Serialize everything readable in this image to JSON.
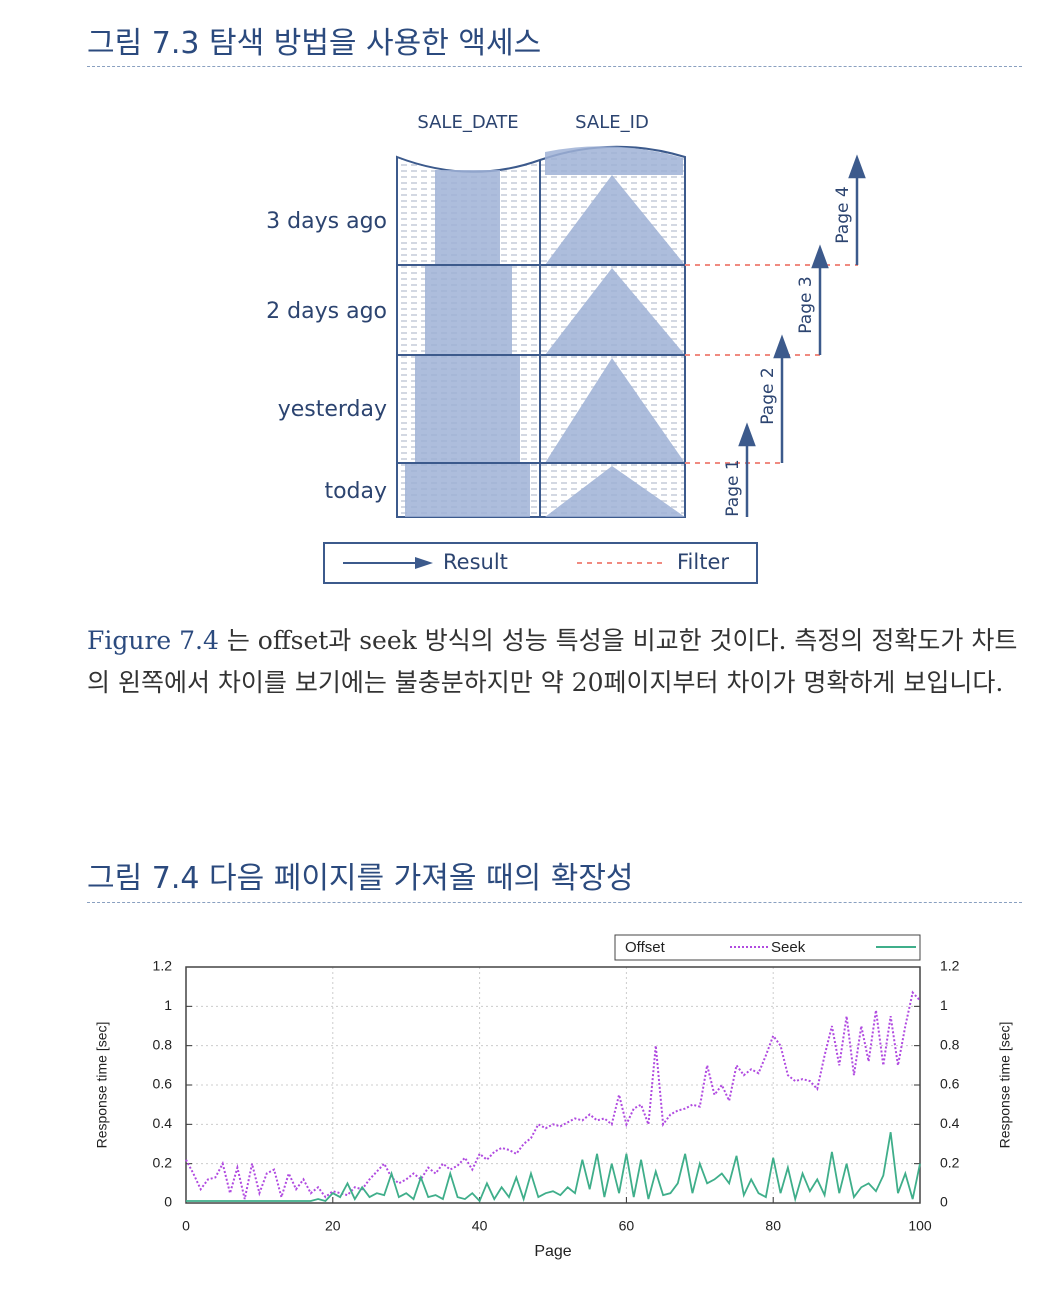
{
  "figure1": {
    "title": "그림 7.3 탐색 방법을 사용한 액세스",
    "columns": [
      "SALE_DATE",
      "SALE_ID"
    ],
    "rows": [
      "3 days ago",
      "2 days ago",
      "yesterday",
      "today"
    ],
    "pages": [
      "Page 1",
      "Page 2",
      "Page 3",
      "Page 4"
    ],
    "legend": [
      "Result",
      "Filter"
    ]
  },
  "paragraph": {
    "link": "Figure 7.4",
    "text": " 는 offset과 seek 방식의 성능 특성을 비교한 것이다. 측정의 정확도가 차트의 왼쪽에서 차이를 보기에는 불충분하지만 약 20페이지부터 차이가 명확하게 보입니다."
  },
  "figure2": {
    "title": "그림 7.4 다음 페이지를 가져올 때의 확장성"
  },
  "chart_data": {
    "type": "line",
    "xlabel": "Page",
    "ylabel": "Response time [sec]",
    "y2label": "Response time [sec]",
    "x": [
      0,
      1,
      2,
      3,
      4,
      5,
      6,
      7,
      8,
      9,
      10,
      11,
      12,
      13,
      14,
      15,
      16,
      17,
      18,
      19,
      20,
      21,
      22,
      23,
      24,
      25,
      26,
      27,
      28,
      29,
      30,
      31,
      32,
      33,
      34,
      35,
      36,
      37,
      38,
      39,
      40,
      41,
      42,
      43,
      44,
      45,
      46,
      47,
      48,
      49,
      50,
      51,
      52,
      53,
      54,
      55,
      56,
      57,
      58,
      59,
      60,
      61,
      62,
      63,
      64,
      65,
      66,
      67,
      68,
      69,
      70,
      71,
      72,
      73,
      74,
      75,
      76,
      77,
      78,
      79,
      80,
      81,
      82,
      83,
      84,
      85,
      86,
      87,
      88,
      89,
      90,
      91,
      92,
      93,
      94,
      95,
      96,
      97,
      98,
      99,
      100
    ],
    "series": [
      {
        "name": "Offset",
        "color": "#b04ae0",
        "style": "dotted",
        "values": [
          0.22,
          0.15,
          0.07,
          0.12,
          0.13,
          0.2,
          0.05,
          0.18,
          0.02,
          0.2,
          0.05,
          0.15,
          0.17,
          0.03,
          0.15,
          0.07,
          0.12,
          0.05,
          0.08,
          0.03,
          0.06,
          0.05,
          0.04,
          0.08,
          0.07,
          0.12,
          0.16,
          0.2,
          0.13,
          0.1,
          0.12,
          0.15,
          0.12,
          0.18,
          0.15,
          0.2,
          0.17,
          0.19,
          0.23,
          0.17,
          0.25,
          0.22,
          0.26,
          0.28,
          0.27,
          0.25,
          0.3,
          0.33,
          0.4,
          0.38,
          0.4,
          0.39,
          0.41,
          0.43,
          0.42,
          0.45,
          0.42,
          0.43,
          0.4,
          0.55,
          0.4,
          0.48,
          0.5,
          0.4,
          0.8,
          0.4,
          0.45,
          0.47,
          0.48,
          0.5,
          0.49,
          0.7,
          0.55,
          0.6,
          0.52,
          0.7,
          0.65,
          0.68,
          0.66,
          0.75,
          0.85,
          0.8,
          0.65,
          0.62,
          0.63,
          0.62,
          0.58,
          0.75,
          0.9,
          0.7,
          0.95,
          0.65,
          0.9,
          0.72,
          0.98,
          0.7,
          0.95,
          0.7,
          0.9,
          1.07,
          1.03
        ]
      },
      {
        "name": "Seek",
        "color": "#3fae8a",
        "style": "solid",
        "values": [
          0.01,
          0.01,
          0.01,
          0.01,
          0.01,
          0.01,
          0.01,
          0.01,
          0.01,
          0.01,
          0.01,
          0.01,
          0.01,
          0.01,
          0.01,
          0.01,
          0.01,
          0.01,
          0.02,
          0.01,
          0.05,
          0.03,
          0.1,
          0.02,
          0.08,
          0.03,
          0.05,
          0.04,
          0.15,
          0.03,
          0.05,
          0.02,
          0.13,
          0.03,
          0.04,
          0.02,
          0.15,
          0.03,
          0.02,
          0.05,
          0.01,
          0.1,
          0.02,
          0.08,
          0.03,
          0.13,
          0.02,
          0.15,
          0.03,
          0.05,
          0.06,
          0.04,
          0.08,
          0.05,
          0.22,
          0.07,
          0.25,
          0.03,
          0.2,
          0.05,
          0.25,
          0.03,
          0.22,
          0.02,
          0.16,
          0.04,
          0.05,
          0.1,
          0.25,
          0.05,
          0.2,
          0.1,
          0.12,
          0.15,
          0.1,
          0.24,
          0.04,
          0.12,
          0.05,
          0.03,
          0.23,
          0.05,
          0.18,
          0.02,
          0.15,
          0.06,
          0.12,
          0.04,
          0.26,
          0.05,
          0.2,
          0.03,
          0.08,
          0.1,
          0.06,
          0.14,
          0.36,
          0.05,
          0.15,
          0.02,
          0.2
        ]
      }
    ],
    "xlim": [
      0,
      100
    ],
    "xticks": [
      0,
      20,
      40,
      60,
      80,
      100
    ],
    "ylim": [
      0,
      1.2
    ],
    "yticks": [
      0,
      0.2,
      0.4,
      0.6,
      0.8,
      1,
      1.2
    ],
    "y2lim": [
      0,
      1.2
    ],
    "y2ticks": [
      0,
      0.2,
      0.4,
      0.6,
      0.8,
      1,
      1.2
    ],
    "grid": true,
    "legend": "top-right"
  }
}
